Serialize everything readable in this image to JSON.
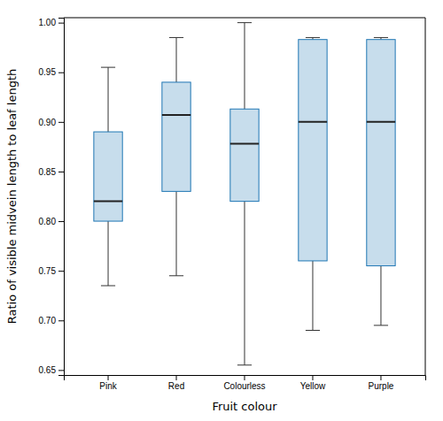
{
  "chart_data": {
    "type": "box",
    "categories": [
      "Pink",
      "Red",
      "Colourless",
      "Yellow",
      "Purple"
    ],
    "boxes": [
      {
        "whislo": 0.735,
        "q1": 0.8,
        "med": 0.82,
        "q3": 0.89,
        "whishi": 0.955
      },
      {
        "whislo": 0.745,
        "q1": 0.83,
        "med": 0.907,
        "q3": 0.94,
        "whishi": 0.985
      },
      {
        "whislo": 0.655,
        "q1": 0.82,
        "med": 0.878,
        "q3": 0.913,
        "whishi": 1.0
      },
      {
        "whislo": 0.69,
        "q1": 0.76,
        "med": 0.9,
        "q3": 0.983,
        "whishi": 0.985
      },
      {
        "whislo": 0.695,
        "q1": 0.755,
        "med": 0.9,
        "q3": 0.983,
        "whishi": 0.985
      }
    ],
    "ylabel": "Ratio of visible midvein length to leaf length",
    "xlabel": "Fruit colour",
    "ylim": [
      0.645,
      1.005
    ],
    "yticks": [
      0.65,
      {
        "value": 0.7,
        "label": "0.70"
      },
      0.75,
      {
        "value": 0.8,
        "label": "0.80"
      },
      0.85,
      {
        "value": 0.9,
        "label": "0.90"
      },
      0.95,
      {
        "value": 1.0,
        "label": "1.00"
      }
    ]
  }
}
